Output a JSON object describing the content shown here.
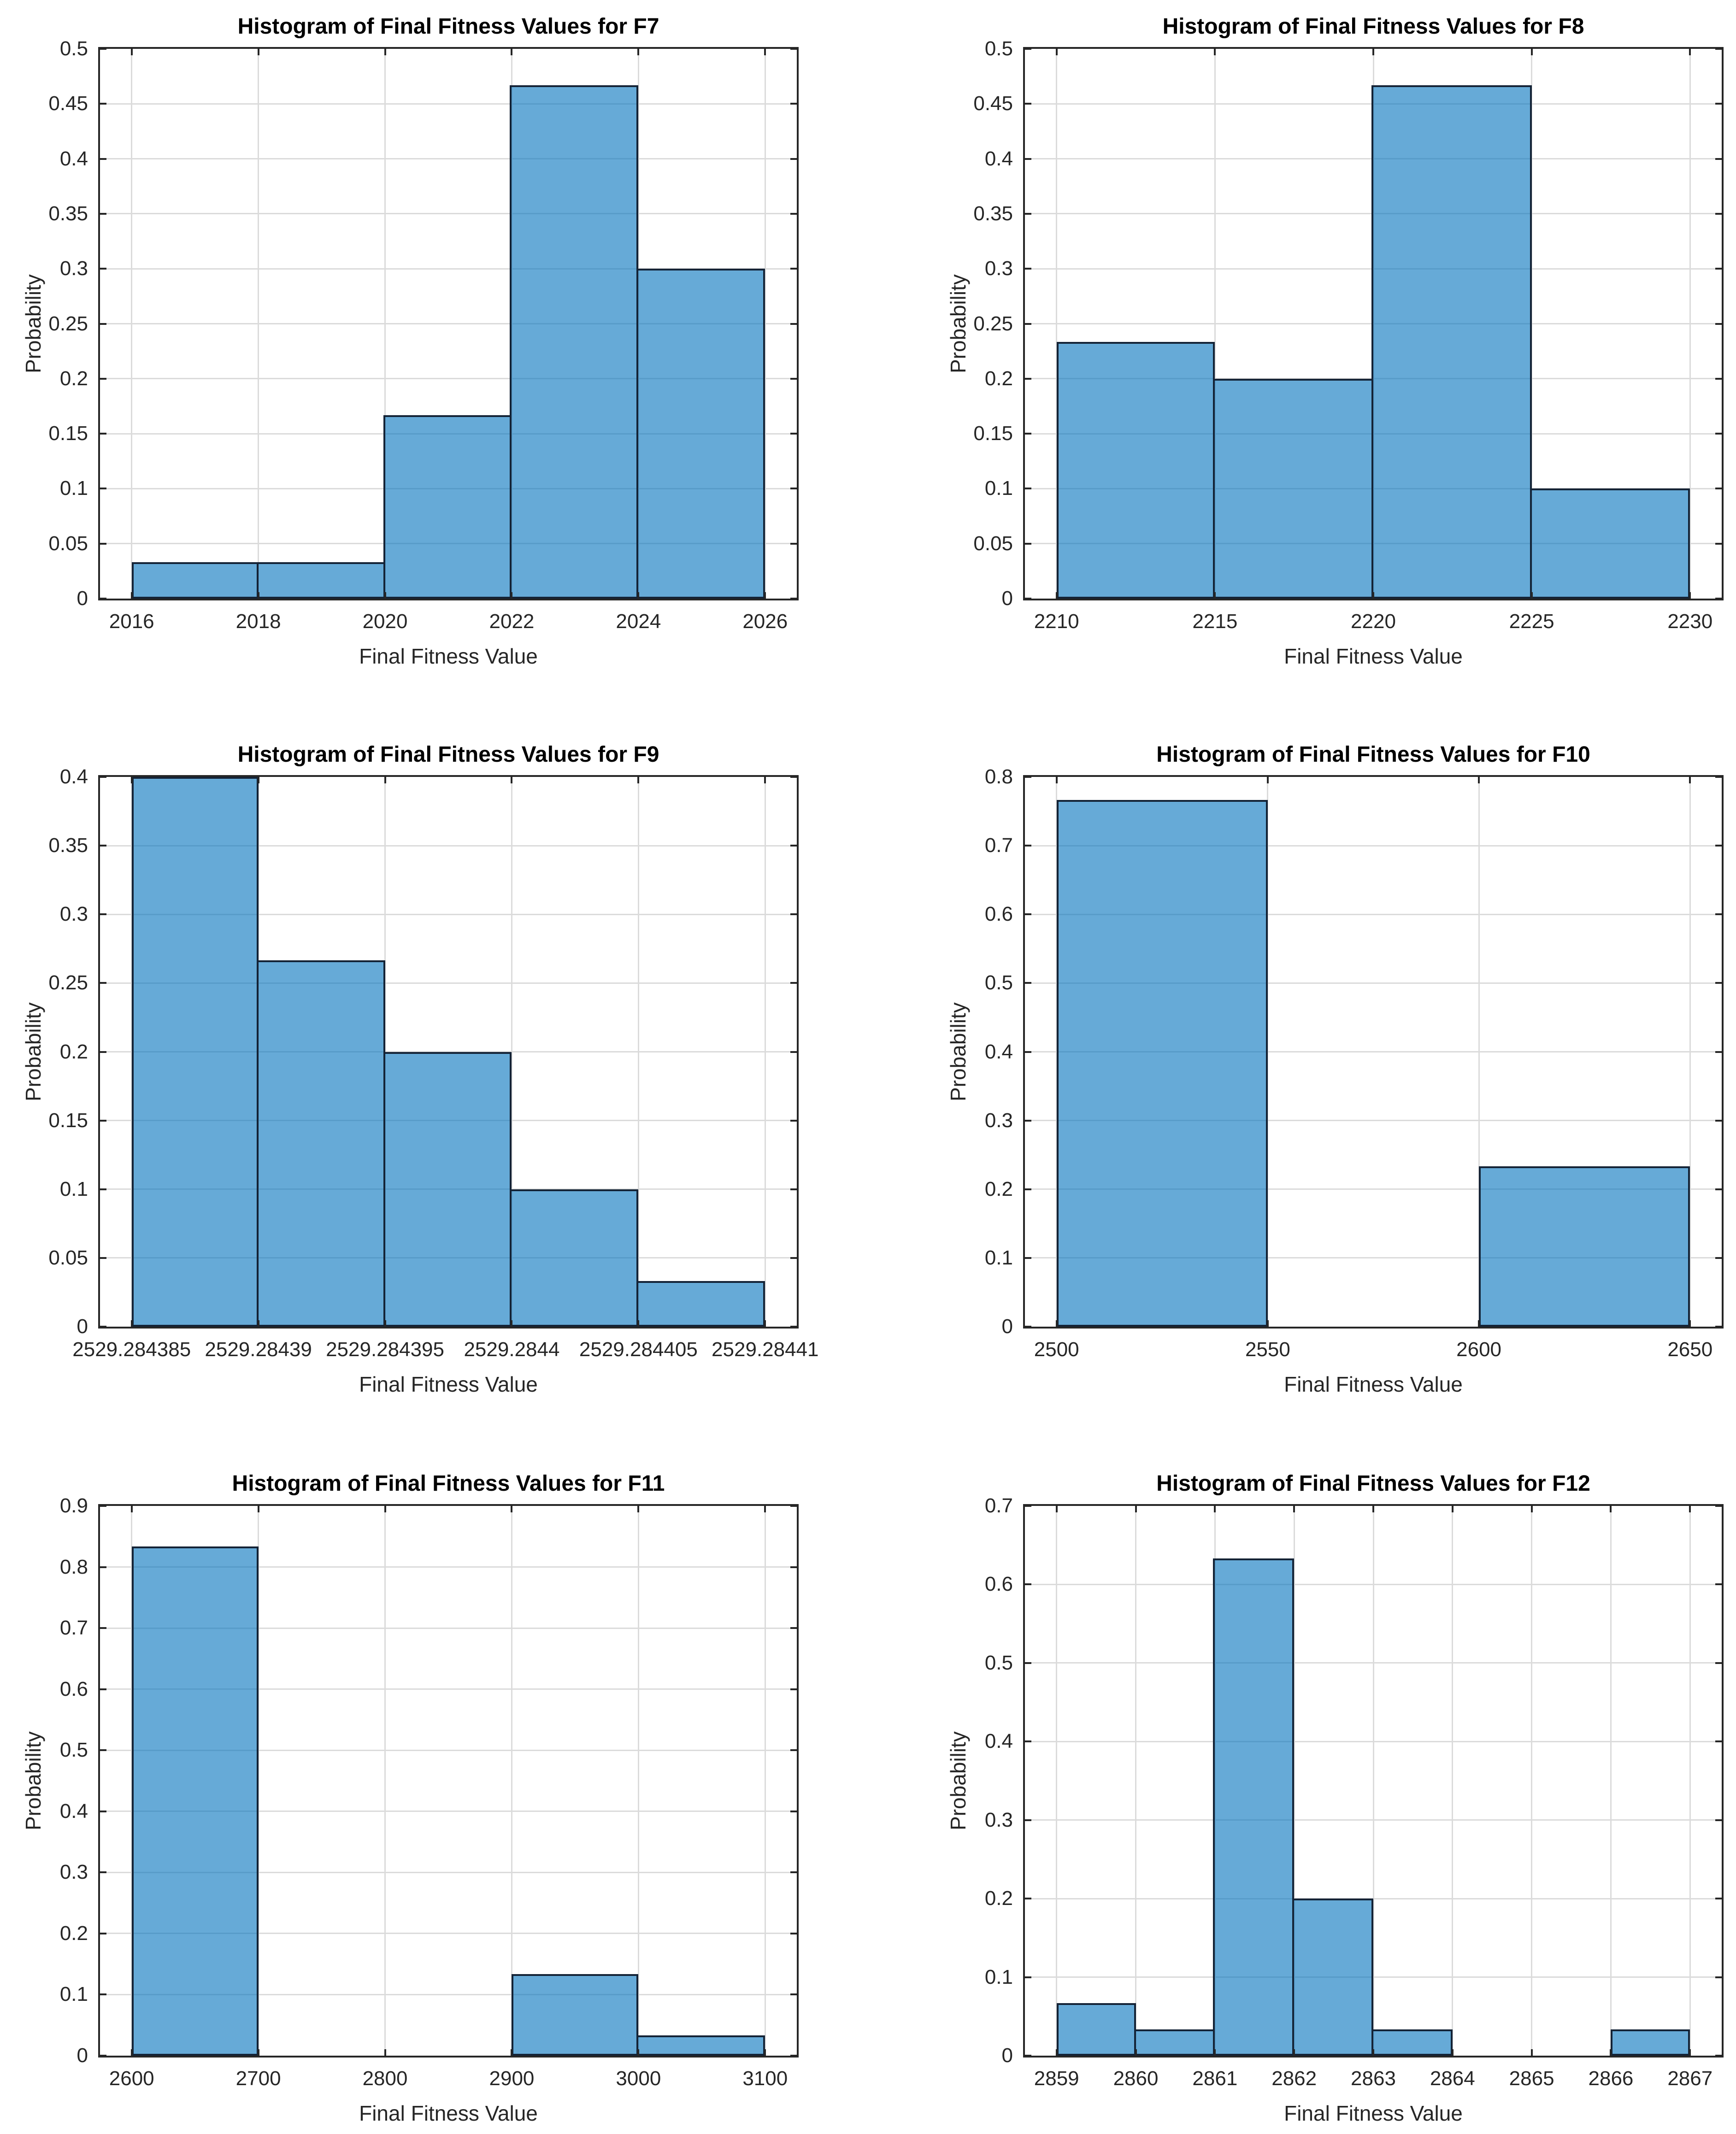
{
  "figure": {
    "background": "#ffffff"
  },
  "style": {
    "bar_face_color": "#0072BD",
    "bar_face_alpha": 0.6,
    "bar_edge_color": "#142336",
    "axis_color": "#262626",
    "grid_color": "#dbdbdb",
    "title_color": "#000000"
  },
  "chart_data": [
    {
      "name": "F7",
      "type": "bar",
      "title": "Histogram of Final Fitness Values for F7",
      "xlabel": "Final Fitness Value",
      "ylabel": "Probability",
      "grid": true,
      "xlim": [
        2015.5,
        2026.5
      ],
      "ylim": [
        0,
        0.5
      ],
      "x_ticks": [
        2016,
        2018,
        2020,
        2022,
        2024,
        2026
      ],
      "x_tick_labels": [
        "2016",
        "2018",
        "2020",
        "2022",
        "2024",
        "2026"
      ],
      "y_ticks": [
        0,
        0.05,
        0.1,
        0.15,
        0.2,
        0.25,
        0.3,
        0.35,
        0.4,
        0.45,
        0.5
      ],
      "y_tick_labels": [
        "0",
        "0.05",
        "0.1",
        "0.15",
        "0.2",
        "0.25",
        "0.3",
        "0.35",
        "0.4",
        "0.45",
        "0.5"
      ],
      "bins": [
        {
          "x0": 2016,
          "x1": 2018,
          "p": 0.0333
        },
        {
          "x0": 2018,
          "x1": 2020,
          "p": 0.0333
        },
        {
          "x0": 2020,
          "x1": 2022,
          "p": 0.1667
        },
        {
          "x0": 2022,
          "x1": 2024,
          "p": 0.4667
        },
        {
          "x0": 2024,
          "x1": 2026,
          "p": 0.3
        }
      ]
    },
    {
      "name": "F8",
      "type": "bar",
      "title": "Histogram of Final Fitness Values for F8",
      "xlabel": "Final Fitness Value",
      "ylabel": "Probability",
      "grid": true,
      "xlim": [
        2209,
        2231
      ],
      "ylim": [
        0,
        0.5
      ],
      "x_ticks": [
        2210,
        2215,
        2220,
        2225,
        2230
      ],
      "x_tick_labels": [
        "2210",
        "2215",
        "2220",
        "2225",
        "2230"
      ],
      "y_ticks": [
        0,
        0.05,
        0.1,
        0.15,
        0.2,
        0.25,
        0.3,
        0.35,
        0.4,
        0.45,
        0.5
      ],
      "y_tick_labels": [
        "0",
        "0.05",
        "0.1",
        "0.15",
        "0.2",
        "0.25",
        "0.3",
        "0.35",
        "0.4",
        "0.45",
        "0.5"
      ],
      "bins": [
        {
          "x0": 2210,
          "x1": 2215,
          "p": 0.2333
        },
        {
          "x0": 2215,
          "x1": 2220,
          "p": 0.2
        },
        {
          "x0": 2220,
          "x1": 2225,
          "p": 0.4667
        },
        {
          "x0": 2225,
          "x1": 2230,
          "p": 0.1
        }
      ]
    },
    {
      "name": "F9",
      "type": "bar",
      "title": "Histogram of Final Fitness Values for F9",
      "xlabel": "Final Fitness Value",
      "ylabel": "Probability",
      "grid": true,
      "xlim": [
        2529.28438375,
        2529.28441125
      ],
      "ylim": [
        0,
        0.4
      ],
      "x_ticks": [
        2529.284385,
        2529.28439,
        2529.284395,
        2529.2844,
        2529.284405,
        2529.28441
      ],
      "x_tick_labels": [
        "2529.284385",
        "2529.28439",
        "2529.284395",
        "2529.2844",
        "2529.284405",
        "2529.28441"
      ],
      "y_ticks": [
        0,
        0.05,
        0.1,
        0.15,
        0.2,
        0.25,
        0.3,
        0.35,
        0.4
      ],
      "y_tick_labels": [
        "0",
        "0.05",
        "0.1",
        "0.15",
        "0.2",
        "0.25",
        "0.3",
        "0.35",
        "0.4"
      ],
      "bins": [
        {
          "x0": 2529.284385,
          "x1": 2529.28439,
          "p": 0.4
        },
        {
          "x0": 2529.28439,
          "x1": 2529.284395,
          "p": 0.2667
        },
        {
          "x0": 2529.284395,
          "x1": 2529.2844,
          "p": 0.2
        },
        {
          "x0": 2529.2844,
          "x1": 2529.284405,
          "p": 0.1
        },
        {
          "x0": 2529.284405,
          "x1": 2529.28441,
          "p": 0.0333
        }
      ]
    },
    {
      "name": "F10",
      "type": "bar",
      "title": "Histogram of Final Fitness Values for F10",
      "xlabel": "Final Fitness Value",
      "ylabel": "Probability",
      "grid": true,
      "xlim": [
        2492.5,
        2657.5
      ],
      "ylim": [
        0,
        0.8
      ],
      "x_ticks": [
        2500,
        2550,
        2600,
        2650
      ],
      "x_tick_labels": [
        "2500",
        "2550",
        "2600",
        "2650"
      ],
      "y_ticks": [
        0,
        0.1,
        0.2,
        0.3,
        0.4,
        0.5,
        0.6,
        0.7,
        0.8
      ],
      "y_tick_labels": [
        "0",
        "0.1",
        "0.2",
        "0.3",
        "0.4",
        "0.5",
        "0.6",
        "0.7",
        "0.8"
      ],
      "bins": [
        {
          "x0": 2500,
          "x1": 2550,
          "p": 0.7667
        },
        {
          "x0": 2600,
          "x1": 2650,
          "p": 0.2333
        }
      ]
    },
    {
      "name": "F11",
      "type": "bar",
      "title": "Histogram of Final Fitness Values for F11",
      "xlabel": "Final Fitness Value",
      "ylabel": "Probability",
      "grid": true,
      "xlim": [
        2575,
        3125
      ],
      "ylim": [
        0,
        0.9
      ],
      "x_ticks": [
        2600,
        2700,
        2800,
        2900,
        3000,
        3100
      ],
      "x_tick_labels": [
        "2600",
        "2700",
        "2800",
        "2900",
        "3000",
        "3100"
      ],
      "y_ticks": [
        0,
        0.1,
        0.2,
        0.3,
        0.4,
        0.5,
        0.6,
        0.7,
        0.8,
        0.9
      ],
      "y_tick_labels": [
        "0",
        "0.1",
        "0.2",
        "0.3",
        "0.4",
        "0.5",
        "0.6",
        "0.7",
        "0.8",
        "0.9"
      ],
      "bins": [
        {
          "x0": 2600,
          "x1": 2700,
          "p": 0.8333
        },
        {
          "x0": 2900,
          "x1": 3000,
          "p": 0.1333
        },
        {
          "x0": 3000,
          "x1": 3100,
          "p": 0.0333
        }
      ]
    },
    {
      "name": "F12",
      "type": "bar",
      "title": "Histogram of Final Fitness Values for F12",
      "xlabel": "Final Fitness Value",
      "ylabel": "Probability",
      "grid": true,
      "xlim": [
        2858.6,
        2867.4
      ],
      "ylim": [
        0,
        0.7
      ],
      "x_ticks": [
        2859,
        2860,
        2861,
        2862,
        2863,
        2864,
        2865,
        2866,
        2867
      ],
      "x_tick_labels": [
        "2859",
        "2860",
        "2861",
        "2862",
        "2863",
        "2864",
        "2865",
        "2866",
        "2867"
      ],
      "y_ticks": [
        0,
        0.1,
        0.2,
        0.3,
        0.4,
        0.5,
        0.6,
        0.7
      ],
      "y_tick_labels": [
        "0",
        "0.1",
        "0.2",
        "0.3",
        "0.4",
        "0.5",
        "0.6",
        "0.7"
      ],
      "bins": [
        {
          "x0": 2859,
          "x1": 2860,
          "p": 0.0667
        },
        {
          "x0": 2860,
          "x1": 2861,
          "p": 0.0333
        },
        {
          "x0": 2861,
          "x1": 2862,
          "p": 0.6333
        },
        {
          "x0": 2862,
          "x1": 2863,
          "p": 0.2
        },
        {
          "x0": 2863,
          "x1": 2864,
          "p": 0.0333
        },
        {
          "x0": 2866,
          "x1": 2867,
          "p": 0.0333
        }
      ]
    }
  ]
}
